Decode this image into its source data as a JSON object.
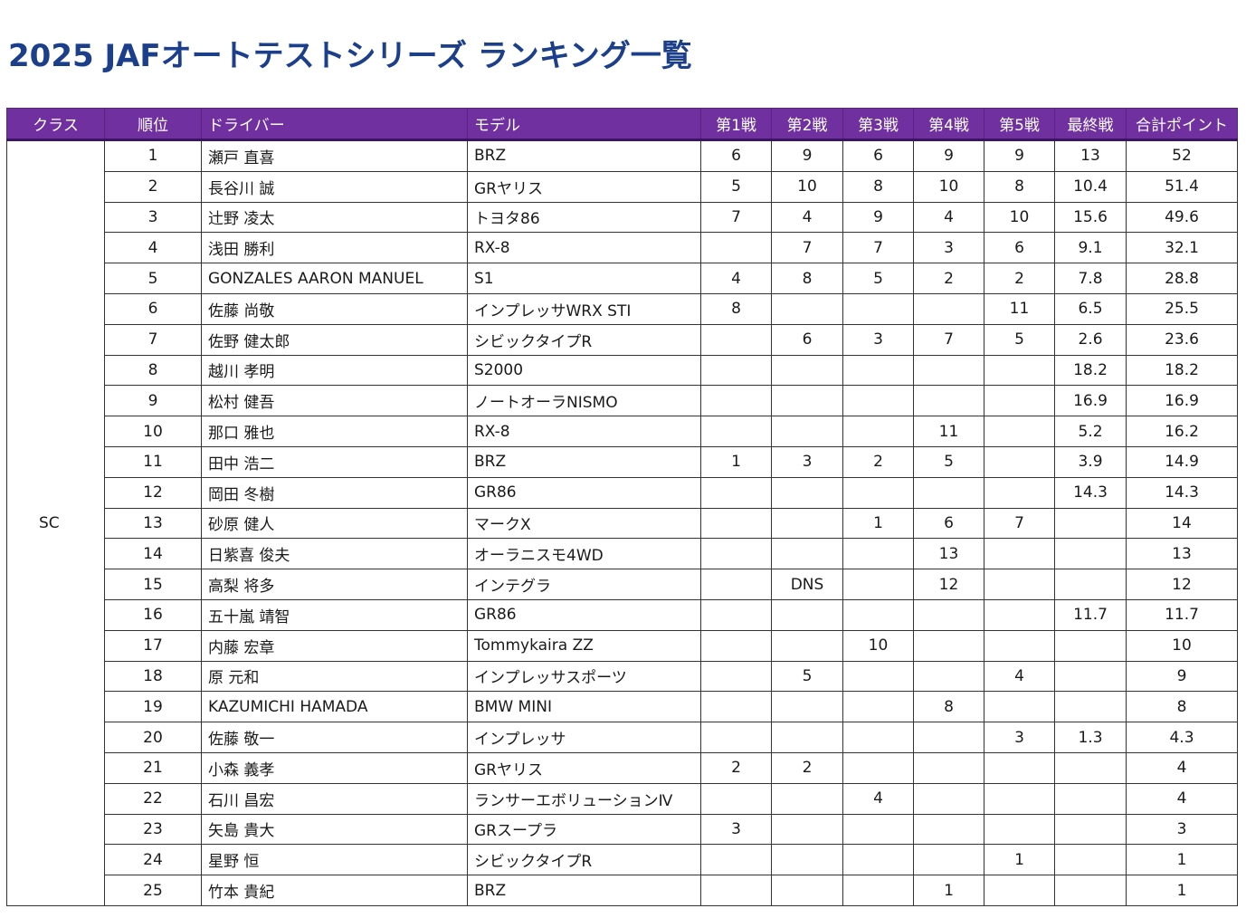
{
  "title": "2025 JAFオートテストシリーズ ランキング一覧",
  "headers": [
    "クラス",
    "順位",
    "ドライバー",
    "モデル",
    "第1戦",
    "第2戦",
    "第3戦",
    "第4戦",
    "第5戦",
    "最終戦",
    "合計ポイント"
  ],
  "class_name": "SC",
  "rows": [
    {
      "rank": "1",
      "driver": "瀬戸 直喜",
      "model": "BRZ",
      "r1": "6",
      "r2": "9",
      "r3": "6",
      "r4": "9",
      "r5": "9",
      "final": "13",
      "total": "52"
    },
    {
      "rank": "2",
      "driver": "長谷川 誠",
      "model": "GRヤリス",
      "r1": "5",
      "r2": "10",
      "r3": "8",
      "r4": "10",
      "r5": "8",
      "final": "10.4",
      "total": "51.4"
    },
    {
      "rank": "3",
      "driver": "辻野 凌太",
      "model": "トヨタ86",
      "r1": "7",
      "r2": "4",
      "r3": "9",
      "r4": "4",
      "r5": "10",
      "final": "15.6",
      "total": "49.6"
    },
    {
      "rank": "4",
      "driver": "浅田 勝利",
      "model": "RX-8",
      "r1": "",
      "r2": "7",
      "r3": "7",
      "r4": "3",
      "r5": "6",
      "final": "9.1",
      "total": "32.1"
    },
    {
      "rank": "5",
      "driver": "GONZALES AARON MANUEL",
      "model": "S1",
      "r1": "4",
      "r2": "8",
      "r3": "5",
      "r4": "2",
      "r5": "2",
      "final": "7.8",
      "total": "28.8"
    },
    {
      "rank": "6",
      "driver": "佐藤 尚敬",
      "model": "インプレッサWRX STI",
      "r1": "8",
      "r2": "",
      "r3": "",
      "r4": "",
      "r5": "11",
      "final": "6.5",
      "total": "25.5"
    },
    {
      "rank": "7",
      "driver": "佐野 健太郎",
      "model": "シビックタイプR",
      "r1": "",
      "r2": "6",
      "r3": "3",
      "r4": "7",
      "r5": "5",
      "final": "2.6",
      "total": "23.6"
    },
    {
      "rank": "8",
      "driver": "越川 孝明",
      "model": "S2000",
      "r1": "",
      "r2": "",
      "r3": "",
      "r4": "",
      "r5": "",
      "final": "18.2",
      "total": "18.2"
    },
    {
      "rank": "9",
      "driver": "松村 健吾",
      "model": "ノートオーラNISMO",
      "r1": "",
      "r2": "",
      "r3": "",
      "r4": "",
      "r5": "",
      "final": "16.9",
      "total": "16.9"
    },
    {
      "rank": "10",
      "driver": "那口 雅也",
      "model": "RX-8",
      "r1": "",
      "r2": "",
      "r3": "",
      "r4": "11",
      "r5": "",
      "final": "5.2",
      "total": "16.2"
    },
    {
      "rank": "11",
      "driver": "田中 浩二",
      "model": "BRZ",
      "r1": "1",
      "r2": "3",
      "r3": "2",
      "r4": "5",
      "r5": "",
      "final": "3.9",
      "total": "14.9"
    },
    {
      "rank": "12",
      "driver": "岡田 冬樹",
      "model": "GR86",
      "r1": "",
      "r2": "",
      "r3": "",
      "r4": "",
      "r5": "",
      "final": "14.3",
      "total": "14.3"
    },
    {
      "rank": "13",
      "driver": "砂原 健人",
      "model": "マークX",
      "r1": "",
      "r2": "",
      "r3": "1",
      "r4": "6",
      "r5": "7",
      "final": "",
      "total": "14"
    },
    {
      "rank": "14",
      "driver": "日紫喜 俊夫",
      "model": "オーラニスモ4WD",
      "r1": "",
      "r2": "",
      "r3": "",
      "r4": "13",
      "r5": "",
      "final": "",
      "total": "13"
    },
    {
      "rank": "15",
      "driver": "高梨 将多",
      "model": "インテグラ",
      "r1": "",
      "r2": "DNS",
      "r3": "",
      "r4": "12",
      "r5": "",
      "final": "",
      "total": "12"
    },
    {
      "rank": "16",
      "driver": "五十嵐 靖智",
      "model": "GR86",
      "r1": "",
      "r2": "",
      "r3": "",
      "r4": "",
      "r5": "",
      "final": "11.7",
      "total": "11.7"
    },
    {
      "rank": "17",
      "driver": "内藤 宏章",
      "model": "Tommykaira ZZ",
      "r1": "",
      "r2": "",
      "r3": "10",
      "r4": "",
      "r5": "",
      "final": "",
      "total": "10"
    },
    {
      "rank": "18",
      "driver": "原 元和",
      "model": "インプレッサスポーツ",
      "r1": "",
      "r2": "5",
      "r3": "",
      "r4": "",
      "r5": "4",
      "final": "",
      "total": "9"
    },
    {
      "rank": "19",
      "driver": "KAZUMICHI HAMADA",
      "model": "BMW MINI",
      "r1": "",
      "r2": "",
      "r3": "",
      "r4": "8",
      "r5": "",
      "final": "",
      "total": "8"
    },
    {
      "rank": "20",
      "driver": "佐藤 敬一",
      "model": "インプレッサ",
      "r1": "",
      "r2": "",
      "r3": "",
      "r4": "",
      "r5": "3",
      "final": "1.3",
      "total": "4.3"
    },
    {
      "rank": "21",
      "driver": "小森 義孝",
      "model": "GRヤリス",
      "r1": "2",
      "r2": "2",
      "r3": "",
      "r4": "",
      "r5": "",
      "final": "",
      "total": "4"
    },
    {
      "rank": "22",
      "driver": "石川 昌宏",
      "model": "ランサーエボリューションⅣ",
      "r1": "",
      "r2": "",
      "r3": "4",
      "r4": "",
      "r5": "",
      "final": "",
      "total": "4"
    },
    {
      "rank": "23",
      "driver": "矢島 貴大",
      "model": "GRスープラ",
      "r1": "3",
      "r2": "",
      "r3": "",
      "r4": "",
      "r5": "",
      "final": "",
      "total": "3"
    },
    {
      "rank": "24",
      "driver": "星野 恒",
      "model": "シビックタイプR",
      "r1": "",
      "r2": "",
      "r3": "",
      "r4": "",
      "r5": "1",
      "final": "",
      "total": "1"
    },
    {
      "rank": "25",
      "driver": "竹本 貴紀",
      "model": "BRZ",
      "r1": "",
      "r2": "",
      "r3": "",
      "r4": "1",
      "r5": "",
      "final": "",
      "total": "1"
    }
  ]
}
